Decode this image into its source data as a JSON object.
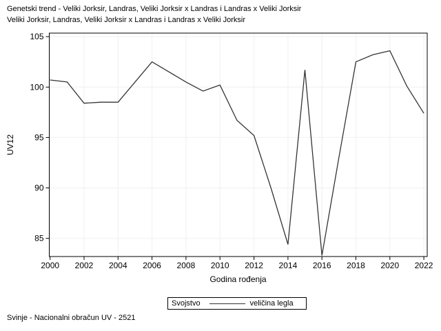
{
  "footnote": "Svinje - Nacionalni obračun UV - 2521",
  "chart_data": {
    "type": "line",
    "title": "Genetski trend - Veliki Jorksir, Landras, Veliki Jorksir x Landras i Landras x Veliki Jorksir",
    "subtitle": "Veliki Jorksir, Landras, Veliki Jorksir x Landras i Landras x Veliki Jorksir",
    "xlabel": "Godina rođenja",
    "ylabel": "UV12",
    "legend_title": "Svojstvo",
    "legend_position": "bottom",
    "grid": true,
    "x": [
      2000,
      2001,
      2002,
      2003,
      2004,
      2005,
      2006,
      2007,
      2008,
      2009,
      2010,
      2011,
      2012,
      2013,
      2014,
      2015,
      2016,
      2017,
      2018,
      2019,
      2020,
      2021,
      2022
    ],
    "series": [
      {
        "name": "veličina legla",
        "values": [
          100.7,
          100.5,
          98.4,
          98.5,
          98.5,
          100.5,
          102.5,
          101.5,
          100.5,
          99.6,
          100.2,
          96.7,
          95.2,
          90.0,
          84.4,
          101.7,
          83.3,
          93.0,
          102.5,
          103.2,
          103.6,
          100.1,
          97.4
        ]
      }
    ],
    "xticks": [
      2000,
      2002,
      2004,
      2006,
      2008,
      2010,
      2012,
      2014,
      2016,
      2018,
      2020,
      2022
    ],
    "yticks": [
      85,
      90,
      95,
      100,
      105
    ],
    "xlim": [
      1999.95,
      2022.2
    ],
    "ylim": [
      83.2,
      105.35
    ],
    "colors": {
      "line": "#333333",
      "grid": "#f0f0f0",
      "frame": "#000000",
      "text": "#000000",
      "background": "#ffffff"
    }
  }
}
